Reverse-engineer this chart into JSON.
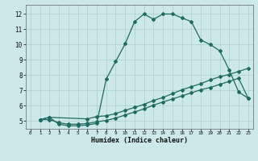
{
  "xlabel": "Humidex (Indice chaleur)",
  "bg_color": "#cce8e8",
  "grid_color": "#aacece",
  "line_color": "#1e6b60",
  "xlim": [
    -0.5,
    23.5
  ],
  "ylim": [
    4.5,
    12.6
  ],
  "yticks": [
    5,
    6,
    7,
    8,
    9,
    10,
    11,
    12
  ],
  "xticks": [
    0,
    1,
    2,
    3,
    4,
    5,
    6,
    7,
    8,
    9,
    10,
    11,
    12,
    13,
    14,
    15,
    16,
    17,
    18,
    19,
    20,
    21,
    22,
    23
  ],
  "series1_x": [
    1,
    2,
    3,
    4,
    5,
    6,
    7,
    8,
    9,
    10,
    11,
    12,
    13,
    14,
    15,
    16,
    17,
    18,
    19,
    20,
    21,
    22,
    23
  ],
  "series1_y": [
    5.1,
    5.25,
    4.8,
    4.7,
    4.7,
    4.75,
    4.85,
    7.75,
    8.9,
    10.05,
    11.5,
    12.0,
    11.65,
    12.0,
    12.0,
    11.75,
    11.5,
    10.3,
    10.0,
    9.6,
    8.35,
    6.9,
    6.5
  ],
  "series2_x": [
    1,
    2,
    6,
    7,
    8,
    9,
    10,
    11,
    12,
    13,
    14,
    15,
    16,
    17,
    18,
    19,
    20,
    21,
    22,
    23
  ],
  "series2_y": [
    5.1,
    5.25,
    5.15,
    5.3,
    5.35,
    5.5,
    5.7,
    5.9,
    6.1,
    6.35,
    6.55,
    6.8,
    7.05,
    7.25,
    7.45,
    7.7,
    7.9,
    8.05,
    8.25,
    8.45
  ],
  "series3_x": [
    1,
    2,
    3,
    4,
    5,
    6,
    7,
    8,
    9,
    10,
    11,
    12,
    13,
    14,
    15,
    16,
    17,
    18,
    19,
    20,
    21,
    22,
    23
  ],
  "series3_y": [
    5.1,
    5.1,
    4.9,
    4.8,
    4.8,
    4.85,
    4.95,
    5.05,
    5.2,
    5.4,
    5.6,
    5.8,
    6.05,
    6.25,
    6.45,
    6.65,
    6.85,
    7.05,
    7.2,
    7.4,
    7.6,
    7.8,
    6.5
  ]
}
